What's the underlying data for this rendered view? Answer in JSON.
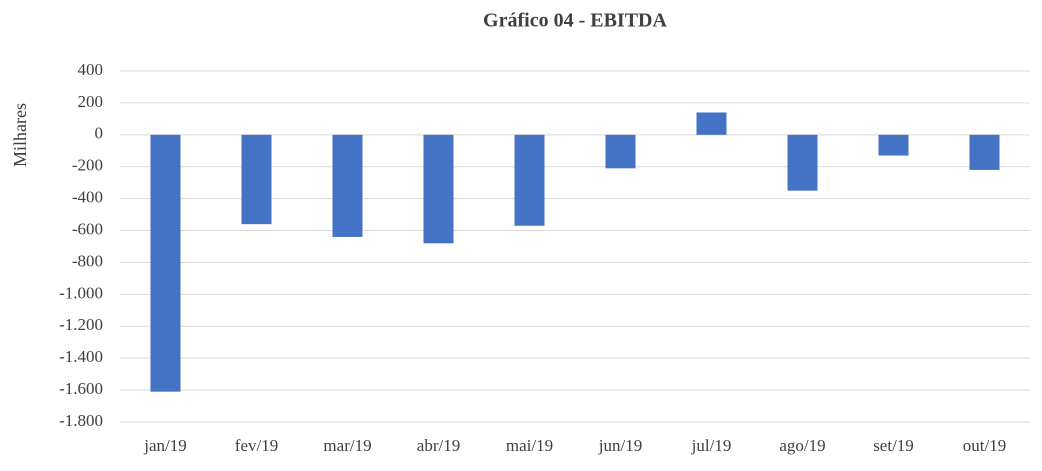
{
  "chart_data": {
    "type": "bar",
    "title": "Gráfico 04 - EBITDA",
    "y_label": "Milhares",
    "categories": [
      "jan/19",
      "fev/19",
      "mar/19",
      "abr/19",
      "mai/19",
      "jun/19",
      "jul/19",
      "ago/19",
      "set/19",
      "out/19"
    ],
    "values": [
      -1610,
      -560,
      -640,
      -680,
      -570,
      -210,
      140,
      -350,
      -130,
      -220
    ],
    "color": "#4472c4",
    "ylim": [
      -1800,
      400
    ],
    "yticks": [
      {
        "value": -1800,
        "label": "-1.800"
      },
      {
        "value": -1600,
        "label": "-1.600"
      },
      {
        "value": -1400,
        "label": "-1.400"
      },
      {
        "value": -1200,
        "label": "-1.200"
      },
      {
        "value": -1000,
        "label": "-1.000"
      },
      -800,
      -600,
      -400,
      -200,
      0,
      200,
      400
    ],
    "grid": true
  }
}
